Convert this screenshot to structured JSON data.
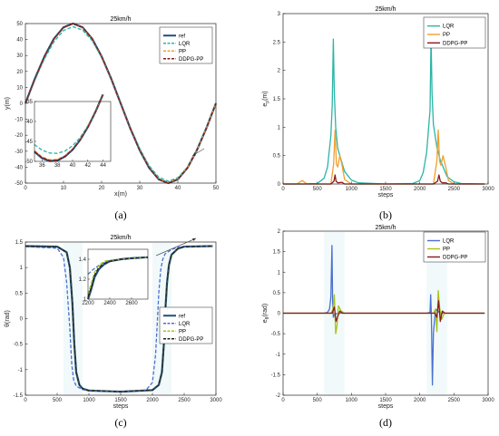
{
  "chart_data": [
    {
      "id": "a",
      "type": "line",
      "caption": "(a)",
      "title": "25km/h",
      "xlabel": "x(m)",
      "ylabel": "y(m)",
      "xlim": [
        0,
        50
      ],
      "ylim": [
        -50,
        50
      ],
      "xticks": [
        0,
        10,
        20,
        30,
        40,
        50
      ],
      "yticks": [
        -50,
        -40,
        -30,
        -20,
        -10,
        0,
        10,
        20,
        30,
        40,
        50
      ],
      "legend_position": "top-right",
      "series": [
        {
          "name": "ref",
          "color": "#1f4e79",
          "dash": "solid",
          "x": [
            0,
            2.5,
            5,
            7.5,
            10,
            12.5,
            15,
            17.5,
            20,
            22.5,
            25,
            27.5,
            30,
            32.5,
            35,
            37.5,
            40,
            42.5,
            45,
            47.5,
            50
          ],
          "y": [
            0,
            15.5,
            29.4,
            40.5,
            47.6,
            50,
            47.6,
            40.5,
            29.4,
            15.5,
            0,
            -15.5,
            -29.4,
            -40.5,
            -47.6,
            -50,
            -47.6,
            -40.5,
            -29.4,
            -15.5,
            0
          ]
        },
        {
          "name": "LQR",
          "color": "#2bb5a8",
          "dash": "dashed",
          "x": [
            0,
            2.5,
            5,
            7.5,
            10,
            12.5,
            15,
            17.5,
            20,
            22.5,
            25,
            27.5,
            30,
            32.5,
            35,
            37.5,
            40,
            42.5,
            45,
            47.5,
            50
          ],
          "y": [
            0,
            14.6,
            27.9,
            38.6,
            45.6,
            48,
            45.9,
            39.3,
            28.8,
            15.4,
            0.4,
            -14.7,
            -28.3,
            -39.2,
            -46.3,
            -48.8,
            -46.6,
            -40,
            -29.2,
            -15.4,
            0
          ]
        },
        {
          "name": "PP",
          "color": "#f0a030",
          "dash": "dashed",
          "x": [
            0,
            2.5,
            5,
            7.5,
            10,
            12.5,
            15,
            17.5,
            20,
            22.5,
            25,
            27.5,
            30,
            32.5,
            35,
            37.5,
            40,
            42.5,
            45,
            47.5,
            50
          ],
          "y": [
            0,
            15.4,
            29.3,
            40.3,
            47.4,
            49.8,
            47.4,
            40.4,
            29.4,
            15.5,
            0,
            -15.4,
            -29.3,
            -40.3,
            -47.4,
            -49.8,
            -47.4,
            -40.4,
            -29.4,
            -15.5,
            0
          ]
        },
        {
          "name": "DDPG-PP",
          "color": "#8b1a1a",
          "dash": "dashed",
          "x": [
            0,
            2.5,
            5,
            7.5,
            10,
            12.5,
            15,
            17.5,
            20,
            22.5,
            25,
            27.5,
            30,
            32.5,
            35,
            37.5,
            40,
            42.5,
            45,
            47.5,
            50
          ],
          "y": [
            0,
            15.5,
            29.4,
            40.5,
            47.6,
            50,
            47.6,
            40.5,
            29.4,
            15.5,
            0,
            -15.5,
            -29.4,
            -40.5,
            -47.6,
            -50,
            -47.6,
            -40.5,
            -29.4,
            -15.5,
            0
          ]
        }
      ],
      "inset": {
        "xlim": [
          35,
          45
        ],
        "ylim": [
          -50,
          -35
        ],
        "xticks": [
          36,
          38,
          40,
          42,
          44
        ],
        "yticks": [
          -50,
          -45,
          -40,
          -35
        ],
        "series": [
          {
            "name": "ref",
            "x": [
              35,
              36,
              37,
              38,
              39,
              40,
              41,
              42,
              43,
              44
            ],
            "y": [
              -47.6,
              -49.2,
              -49.9,
              -49.8,
              -48.8,
              -47.1,
              -44.6,
              -41.4,
              -37.6,
              -33.2
            ]
          },
          {
            "name": "LQR",
            "x": [
              35,
              36,
              37,
              38,
              39,
              40,
              41,
              42,
              43,
              44
            ],
            "y": [
              -45.8,
              -47.2,
              -47.9,
              -48,
              -47.4,
              -46.1,
              -44,
              -41.1,
              -37.6,
              -33.4
            ]
          },
          {
            "name": "PP",
            "x": [
              35,
              36,
              37,
              38,
              39,
              40,
              41,
              42,
              43,
              44
            ],
            "y": [
              -47.3,
              -48.9,
              -49.6,
              -49.5,
              -48.6,
              -46.9,
              -44.5,
              -41.3,
              -37.6,
              -33.2
            ]
          },
          {
            "name": "DDPG-PP",
            "x": [
              35,
              36,
              37,
              38,
              39,
              40,
              41,
              42,
              43,
              44
            ],
            "y": [
              -47.5,
              -49.1,
              -49.8,
              -49.7,
              -48.7,
              -47,
              -44.6,
              -41.4,
              -37.6,
              -33.2
            ]
          }
        ]
      }
    },
    {
      "id": "b",
      "type": "line",
      "caption": "(b)",
      "title": "25km/h",
      "xlabel": "steps",
      "ylabel": "e_p(m)",
      "ylabel_main": "e",
      "ylabel_sub": "p",
      "ylabel_unit": "(m)",
      "xlim": [
        0,
        3000
      ],
      "ylim": [
        0,
        3
      ],
      "xticks": [
        0,
        500,
        1000,
        1500,
        2000,
        2500,
        3000
      ],
      "yticks": [
        0,
        0.5,
        1,
        1.5,
        2,
        2.5,
        3
      ],
      "legend_position": "top-right",
      "series": [
        {
          "name": "LQR",
          "color": "#2bb5a8",
          "x": [
            0,
            300,
            500,
            600,
            650,
            700,
            720,
            735,
            750,
            770,
            800,
            900,
            1000,
            1100,
            1500,
            1900,
            2000,
            2050,
            2100,
            2150,
            2165,
            2180,
            2200,
            2250,
            2300,
            2400,
            2500,
            2600,
            2950
          ],
          "y": [
            0,
            0,
            0.01,
            0.1,
            0.3,
            0.85,
            1.4,
            2.55,
            1.6,
            1,
            0.62,
            0.22,
            0.07,
            0.02,
            0,
            0.01,
            0.06,
            0.2,
            0.55,
            1.3,
            2.6,
            1.6,
            1.05,
            0.65,
            0.42,
            0.13,
            0.04,
            0.01,
            0
          ]
        },
        {
          "name": "PP",
          "color": "#f0a030",
          "x": [
            0,
            200,
            280,
            350,
            500,
            700,
            740,
            760,
            780,
            800,
            830,
            860,
            900,
            1000,
            1500,
            2000,
            2200,
            2250,
            2270,
            2290,
            2310,
            2340,
            2380,
            2420,
            2500,
            2950
          ],
          "y": [
            0,
            0,
            0.06,
            0,
            0,
            0,
            0.35,
            0.95,
            0.35,
            0.3,
            0.5,
            0.35,
            0.08,
            0,
            0,
            0,
            0,
            0.4,
            0.95,
            0.4,
            0.33,
            0.5,
            0.3,
            0.06,
            0,
            0
          ]
        },
        {
          "name": "DDPG-PP",
          "color": "#8b1a1a",
          "x": [
            0,
            700,
            745,
            760,
            775,
            800,
            860,
            900,
            1500,
            2200,
            2260,
            2280,
            2300,
            2330,
            2380,
            2420,
            2950
          ],
          "y": [
            0,
            0,
            0.05,
            0.16,
            0.05,
            0.02,
            0.03,
            0,
            0,
            0,
            0.05,
            0.16,
            0.05,
            0.02,
            0.02,
            0,
            0
          ]
        }
      ]
    },
    {
      "id": "c",
      "type": "line",
      "caption": "(c)",
      "title": "25km/h",
      "xlabel": "steps",
      "ylabel": "θ(rad)",
      "xlim": [
        0,
        3000
      ],
      "ylim": [
        -1.5,
        1.5
      ],
      "xticks": [
        0,
        500,
        1000,
        1500,
        2000,
        2500,
        3000
      ],
      "yticks": [
        -1.5,
        -1,
        -0.5,
        0,
        0.5,
        1,
        1.5
      ],
      "legend_position": "right",
      "series": [
        {
          "name": "ref",
          "color": "#1f4e79",
          "dash": "solid",
          "x": [
            0,
            500,
            650,
            700,
            740,
            770,
            800,
            850,
            900,
            1000,
            1500,
            2000,
            2100,
            2150,
            2180,
            2200,
            2230,
            2260,
            2300,
            2400,
            2500,
            2950
          ],
          "y": [
            1.42,
            1.41,
            1.3,
            1.0,
            0.3,
            -0.5,
            -1.05,
            -1.3,
            -1.37,
            -1.41,
            -1.43,
            -1.4,
            -1.3,
            -1.05,
            -0.5,
            0.1,
            0.7,
            1.05,
            1.25,
            1.37,
            1.41,
            1.42
          ]
        },
        {
          "name": "LQR",
          "color": "#4a6fd0",
          "dash": "dashed",
          "x": [
            0,
            500,
            600,
            650,
            700,
            730,
            760,
            800,
            900,
            1000,
            1500,
            1900,
            2000,
            2050,
            2080,
            2100,
            2130,
            2160,
            2200,
            2300,
            2400,
            2950
          ],
          "y": [
            1.41,
            1.38,
            1.2,
            0.7,
            -0.2,
            -0.9,
            -1.2,
            -1.32,
            -1.39,
            -1.41,
            -1.43,
            -1.4,
            -1.25,
            -0.7,
            0.0,
            0.5,
            0.95,
            1.15,
            1.27,
            1.35,
            1.4,
            1.42
          ]
        },
        {
          "name": "PP",
          "color": "#a8c21a",
          "dash": "dashed",
          "x": [
            0,
            500,
            650,
            700,
            740,
            770,
            800,
            850,
            900,
            1000,
            1500,
            2000,
            2100,
            2150,
            2180,
            2200,
            2230,
            2260,
            2300,
            2400,
            2500,
            2950
          ],
          "y": [
            1.42,
            1.41,
            1.3,
            1.0,
            0.3,
            -0.5,
            -1.05,
            -1.3,
            -1.37,
            -1.41,
            -1.43,
            -1.4,
            -1.3,
            -1.05,
            -0.5,
            0.1,
            0.7,
            1.05,
            1.25,
            1.37,
            1.41,
            1.42
          ]
        },
        {
          "name": "DDPG-PP",
          "color": "#202020",
          "dash": "dashed",
          "x": [
            0,
            500,
            650,
            700,
            740,
            770,
            800,
            850,
            900,
            1000,
            1500,
            2000,
            2100,
            2150,
            2180,
            2200,
            2230,
            2260,
            2300,
            2400,
            2500,
            2950
          ],
          "y": [
            1.42,
            1.41,
            1.3,
            1.0,
            0.3,
            -0.5,
            -1.05,
            -1.3,
            -1.37,
            -1.41,
            -1.43,
            -1.4,
            -1.3,
            -1.05,
            -0.5,
            0.1,
            0.7,
            1.05,
            1.25,
            1.37,
            1.41,
            1.42
          ]
        }
      ],
      "inset": {
        "xlim": [
          2200,
          2750
        ],
        "ylim": [
          1,
          1.5
        ],
        "xticks": [
          2200,
          2400,
          2600
        ],
        "yticks": [
          1,
          1.2,
          1.4
        ],
        "series": [
          {
            "name": "ref",
            "x": [
              2200,
              2230,
              2260,
              2300,
              2350,
              2400,
              2500,
              2600,
              2750
            ],
            "y": [
              1.0,
              1.1,
              1.22,
              1.3,
              1.35,
              1.38,
              1.4,
              1.41,
              1.42
            ]
          },
          {
            "name": "LQR",
            "x": [
              2200,
              2250,
              2300,
              2350,
              2400,
              2500,
              2600,
              2750
            ],
            "y": [
              1.25,
              1.3,
              1.34,
              1.37,
              1.39,
              1.4,
              1.41,
              1.42
            ]
          },
          {
            "name": "PP",
            "x": [
              2200,
              2230,
              2260,
              2300,
              2350,
              2400,
              2500,
              2600,
              2750
            ],
            "y": [
              1.05,
              1.16,
              1.27,
              1.34,
              1.38,
              1.39,
              1.4,
              1.41,
              1.42
            ]
          },
          {
            "name": "DDPG-PP",
            "x": [
              2200,
              2230,
              2260,
              2300,
              2350,
              2400,
              2500,
              2600,
              2750
            ],
            "y": [
              1.02,
              1.12,
              1.24,
              1.32,
              1.36,
              1.38,
              1.4,
              1.41,
              1.42
            ]
          }
        ]
      }
    },
    {
      "id": "d",
      "type": "line",
      "caption": "(d)",
      "title": "25km/h",
      "xlabel": "steps",
      "ylabel": "e_θ(rad)",
      "ylabel_main": "e",
      "ylabel_sub": "θ",
      "ylabel_unit": "(rad)",
      "xlim": [
        0,
        3000
      ],
      "ylim": [
        -2,
        2
      ],
      "xticks": [
        0,
        500,
        1000,
        1500,
        2000,
        2500,
        3000
      ],
      "yticks": [
        -2,
        -1.5,
        -1,
        -0.5,
        0,
        0.5,
        1,
        1.5,
        2
      ],
      "legend_position": "top-right",
      "series": [
        {
          "name": "LQR",
          "color": "#4a6fd0",
          "x": [
            0,
            600,
            650,
            680,
            700,
            715,
            725,
            735,
            750,
            800,
            1500,
            2100,
            2150,
            2160,
            2170,
            2185,
            2200,
            2230,
            2300,
            2950
          ],
          "y": [
            0,
            0,
            0.02,
            0.1,
            0.4,
            1.65,
            0.3,
            -0.1,
            -0.03,
            0,
            0,
            0,
            0.02,
            0.45,
            -0.1,
            -1.75,
            -0.5,
            0.1,
            0,
            0
          ]
        },
        {
          "name": "PP",
          "color": "#a8c21a",
          "x": [
            0,
            700,
            730,
            750,
            770,
            790,
            810,
            850,
            900,
            1500,
            2200,
            2230,
            2250,
            2270,
            2290,
            2320,
            2360,
            2950
          ],
          "y": [
            0,
            0,
            0.1,
            0.45,
            -0.5,
            -0.3,
            0.18,
            0.05,
            0,
            0,
            0,
            0.1,
            -0.45,
            0.55,
            0.15,
            -0.15,
            0,
            0
          ]
        },
        {
          "name": "DDPG-PP",
          "color": "#8b1a1a",
          "x": [
            0,
            720,
            750,
            775,
            800,
            830,
            870,
            1500,
            2220,
            2250,
            2275,
            2300,
            2330,
            2370,
            2950
          ],
          "y": [
            0,
            0,
            0.15,
            -0.2,
            -0.08,
            0.05,
            0,
            0,
            0,
            -0.1,
            0.3,
            -0.2,
            0.05,
            0,
            0
          ]
        }
      ]
    }
  ]
}
